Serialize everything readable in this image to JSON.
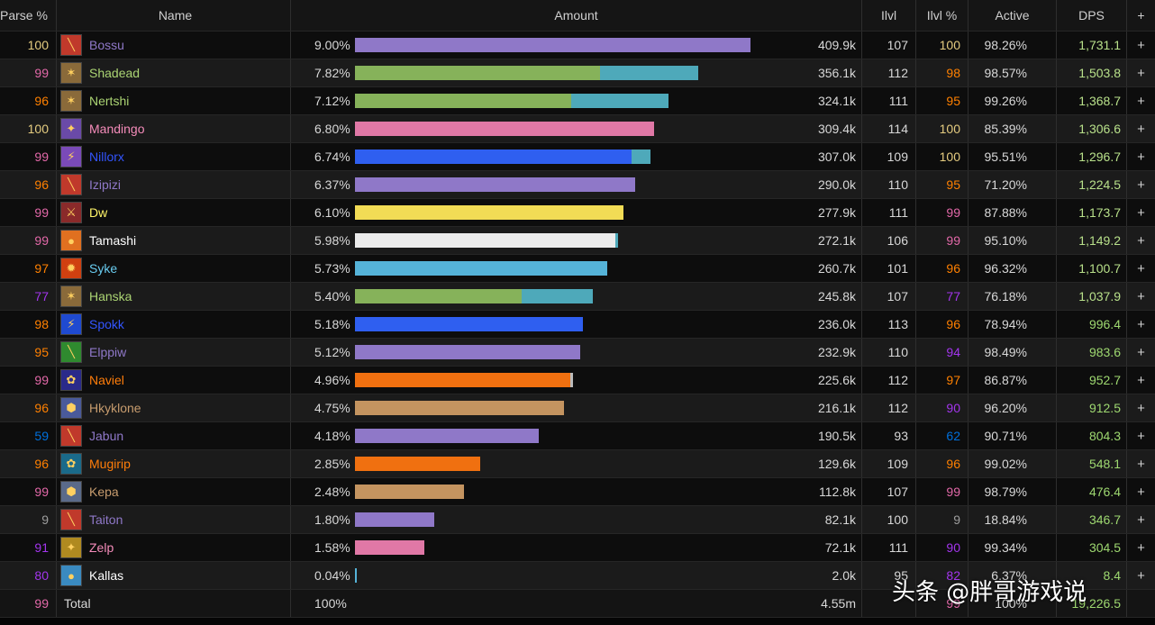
{
  "header": {
    "parse": "Parse %",
    "name": "Name",
    "amount": "Amount",
    "ilvl": "Ilvl",
    "ilvl_pct": "Ilvl %",
    "active": "Active",
    "dps": "DPS",
    "plus": "+"
  },
  "colors": {
    "purple": "#8f78c8",
    "green": "#86b25a",
    "teal": "#4ea9ba",
    "pink": "#e078a6",
    "blue": "#2f5ff0",
    "yellow": "#f2dc55",
    "white": "#ececec",
    "skyblue": "#55b3d8",
    "orange": "#f07010",
    "tan": "#c49460",
    "grey": "#9a9a9a"
  },
  "players": [
    {
      "parse": "100",
      "parse_color": "#e5cc80",
      "name": "Bossu",
      "name_color": "#8f78c8",
      "icon": "warlock-icon",
      "icon_color": "#c0392b",
      "pct": "9.00%",
      "bar": [
        {
          "frac": 0.9,
          "color": "#8f78c8"
        }
      ],
      "amount": "409.9k",
      "ilvl": "107",
      "ilvl_pct": "100",
      "ilvl_color": "#e5cc80",
      "active": "98.26%",
      "dps": "1,731.1",
      "dps_color": "#b8e08a"
    },
    {
      "parse": "99",
      "parse_color": "#e268a8",
      "name": "Shadead",
      "name_color": "#abd473",
      "icon": "hunter-icon",
      "icon_color": "#8a6a3a",
      "pct": "7.82%",
      "bar": [
        {
          "frac": 0.558,
          "color": "#86b25a"
        },
        {
          "frac": 0.224,
          "color": "#4ea9ba"
        }
      ],
      "amount": "356.1k",
      "ilvl": "112",
      "ilvl_pct": "98",
      "ilvl_color": "#ff8000",
      "active": "98.57%",
      "dps": "1,503.8",
      "dps_color": "#b8e08a"
    },
    {
      "parse": "96",
      "parse_color": "#ff8000",
      "name": "Nertshi",
      "name_color": "#abd473",
      "icon": "hunter-icon",
      "icon_color": "#8a6a3a",
      "pct": "7.12%",
      "bar": [
        {
          "frac": 0.491,
          "color": "#86b25a"
        },
        {
          "frac": 0.221,
          "color": "#4ea9ba"
        }
      ],
      "amount": "324.1k",
      "ilvl": "111",
      "ilvl_pct": "95",
      "ilvl_color": "#ff8000",
      "active": "99.26%",
      "dps": "1,368.7",
      "dps_color": "#b8e08a"
    },
    {
      "parse": "100",
      "parse_color": "#e5cc80",
      "name": "Mandingo",
      "name_color": "#f58cba",
      "icon": "paladin-icon",
      "icon_color": "#6a4aa8",
      "pct": "6.80%",
      "bar": [
        {
          "frac": 0.68,
          "color": "#e078a6"
        }
      ],
      "amount": "309.4k",
      "ilvl": "114",
      "ilvl_pct": "100",
      "ilvl_color": "#e5cc80",
      "active": "85.39%",
      "dps": "1,306.6",
      "dps_color": "#b8e08a"
    },
    {
      "parse": "99",
      "parse_color": "#e268a8",
      "name": "Nillorx",
      "name_color": "#3355ff",
      "icon": "shaman-icon",
      "icon_color": "#7a4ab8",
      "pct": "6.74%",
      "bar": [
        {
          "frac": 0.63,
          "color": "#2f5ff0"
        },
        {
          "frac": 0.044,
          "color": "#4ea9ba"
        }
      ],
      "amount": "307.0k",
      "ilvl": "109",
      "ilvl_pct": "100",
      "ilvl_color": "#e5cc80",
      "active": "95.51%",
      "dps": "1,296.7",
      "dps_color": "#b8e08a"
    },
    {
      "parse": "96",
      "parse_color": "#ff8000",
      "name": "Izipizi",
      "name_color": "#8f78c8",
      "icon": "warlock-icon",
      "icon_color": "#c0392b",
      "pct": "6.37%",
      "bar": [
        {
          "frac": 0.637,
          "color": "#8f78c8"
        }
      ],
      "amount": "290.0k",
      "ilvl": "110",
      "ilvl_pct": "95",
      "ilvl_color": "#ff8000",
      "active": "71.20%",
      "dps": "1,224.5",
      "dps_color": "#b8e08a"
    },
    {
      "parse": "99",
      "parse_color": "#e268a8",
      "name": "Dw",
      "name_color": "#fff569",
      "icon": "rogue-icon",
      "icon_color": "#8a2a2a",
      "pct": "6.10%",
      "bar": [
        {
          "frac": 0.61,
          "color": "#f2dc55"
        }
      ],
      "amount": "277.9k",
      "ilvl": "111",
      "ilvl_pct": "99",
      "ilvl_color": "#e268a8",
      "active": "87.88%",
      "dps": "1,173.7",
      "dps_color": "#b8e08a"
    },
    {
      "parse": "99",
      "parse_color": "#e268a8",
      "name": "Tamashi",
      "name_color": "#ffffff",
      "icon": "priest-icon",
      "icon_color": "#e07020",
      "pct": "5.98%",
      "bar": [
        {
          "frac": 0.592,
          "color": "#ececec"
        },
        {
          "frac": 0.006,
          "color": "#4ea9ba"
        }
      ],
      "amount": "272.1k",
      "ilvl": "106",
      "ilvl_pct": "99",
      "ilvl_color": "#e268a8",
      "active": "95.10%",
      "dps": "1,149.2",
      "dps_color": "#b8e08a"
    },
    {
      "parse": "97",
      "parse_color": "#ff8000",
      "name": "Syke",
      "name_color": "#69ccf0",
      "icon": "mage-icon",
      "icon_color": "#d04010",
      "pct": "5.73%",
      "bar": [
        {
          "frac": 0.573,
          "color": "#55b3d8"
        }
      ],
      "amount": "260.7k",
      "ilvl": "101",
      "ilvl_pct": "96",
      "ilvl_color": "#ff8000",
      "active": "96.32%",
      "dps": "1,100.7",
      "dps_color": "#b8e08a"
    },
    {
      "parse": "77",
      "parse_color": "#a335ee",
      "name": "Hanska",
      "name_color": "#abd473",
      "icon": "hunter-icon",
      "icon_color": "#8a6a3a",
      "pct": "5.40%",
      "bar": [
        {
          "frac": 0.379,
          "color": "#86b25a"
        },
        {
          "frac": 0.161,
          "color": "#4ea9ba"
        }
      ],
      "amount": "245.8k",
      "ilvl": "107",
      "ilvl_pct": "77",
      "ilvl_color": "#a335ee",
      "active": "76.18%",
      "dps": "1,037.9",
      "dps_color": "#b8e08a"
    },
    {
      "parse": "98",
      "parse_color": "#ff8000",
      "name": "Spokk",
      "name_color": "#3355ff",
      "icon": "shaman-icon",
      "icon_color": "#1f4ad0",
      "pct": "5.18%",
      "bar": [
        {
          "frac": 0.518,
          "color": "#2f5ff0"
        }
      ],
      "amount": "236.0k",
      "ilvl": "113",
      "ilvl_pct": "96",
      "ilvl_color": "#ff8000",
      "active": "78.94%",
      "dps": "996.4",
      "dps_color": "#9ed870"
    },
    {
      "parse": "95",
      "parse_color": "#ff8000",
      "name": "Elppiw",
      "name_color": "#8f78c8",
      "icon": "warlock-icon",
      "icon_color": "#2f8a2f",
      "pct": "5.12%",
      "bar": [
        {
          "frac": 0.512,
          "color": "#8f78c8"
        }
      ],
      "amount": "232.9k",
      "ilvl": "110",
      "ilvl_pct": "94",
      "ilvl_color": "#a335ee",
      "active": "98.49%",
      "dps": "983.6",
      "dps_color": "#9ed870"
    },
    {
      "parse": "99",
      "parse_color": "#e268a8",
      "name": "Naviel",
      "name_color": "#ff7d0a",
      "icon": "druid-icon",
      "icon_color": "#2a2a8a",
      "pct": "4.96%",
      "bar": [
        {
          "frac": 0.49,
          "color": "#f07010"
        },
        {
          "frac": 0.006,
          "color": "#bbbbbb"
        }
      ],
      "amount": "225.6k",
      "ilvl": "112",
      "ilvl_pct": "97",
      "ilvl_color": "#ff8000",
      "active": "86.87%",
      "dps": "952.7",
      "dps_color": "#9ed870"
    },
    {
      "parse": "96",
      "parse_color": "#ff8000",
      "name": "Hkyklone",
      "name_color": "#c79c6e",
      "icon": "warrior-icon",
      "icon_color": "#4a5a9a",
      "pct": "4.75%",
      "bar": [
        {
          "frac": 0.475,
          "color": "#c49460"
        }
      ],
      "amount": "216.1k",
      "ilvl": "112",
      "ilvl_pct": "90",
      "ilvl_color": "#a335ee",
      "active": "96.20%",
      "dps": "912.5",
      "dps_color": "#9ed870"
    },
    {
      "parse": "59",
      "parse_color": "#0070dd",
      "name": "Jabun",
      "name_color": "#8f78c8",
      "icon": "warlock-icon",
      "icon_color": "#c0392b",
      "pct": "4.18%",
      "bar": [
        {
          "frac": 0.418,
          "color": "#8f78c8"
        }
      ],
      "amount": "190.5k",
      "ilvl": "93",
      "ilvl_pct": "62",
      "ilvl_color": "#0070dd",
      "active": "90.71%",
      "dps": "804.3",
      "dps_color": "#9ed870"
    },
    {
      "parse": "96",
      "parse_color": "#ff8000",
      "name": "Mugirip",
      "name_color": "#ff7d0a",
      "icon": "druid-icon",
      "icon_color": "#1a6a8a",
      "pct": "2.85%",
      "bar": [
        {
          "frac": 0.285,
          "color": "#f07010"
        }
      ],
      "amount": "129.6k",
      "ilvl": "109",
      "ilvl_pct": "96",
      "ilvl_color": "#ff8000",
      "active": "99.02%",
      "dps": "548.1",
      "dps_color": "#9ed870"
    },
    {
      "parse": "99",
      "parse_color": "#e268a8",
      "name": "Kepa",
      "name_color": "#c79c6e",
      "icon": "warrior-icon",
      "icon_color": "#5a6a8a",
      "pct": "2.48%",
      "bar": [
        {
          "frac": 0.248,
          "color": "#c49460"
        }
      ],
      "amount": "112.8k",
      "ilvl": "107",
      "ilvl_pct": "99",
      "ilvl_color": "#e268a8",
      "active": "98.79%",
      "dps": "476.4",
      "dps_color": "#9ed870"
    },
    {
      "parse": "9",
      "parse_color": "#9d9d9d",
      "name": "Taiton",
      "name_color": "#8f78c8",
      "icon": "warlock-icon",
      "icon_color": "#c0392b",
      "pct": "1.80%",
      "bar": [
        {
          "frac": 0.18,
          "color": "#8f78c8"
        }
      ],
      "amount": "82.1k",
      "ilvl": "100",
      "ilvl_pct": "9",
      "ilvl_color": "#9d9d9d",
      "active": "18.84%",
      "dps": "346.7",
      "dps_color": "#9ed870"
    },
    {
      "parse": "91",
      "parse_color": "#a335ee",
      "name": "Zelp",
      "name_color": "#f58cba",
      "icon": "paladin-icon",
      "icon_color": "#b08a20",
      "pct": "1.58%",
      "bar": [
        {
          "frac": 0.158,
          "color": "#e078a6"
        }
      ],
      "amount": "72.1k",
      "ilvl": "111",
      "ilvl_pct": "90",
      "ilvl_color": "#a335ee",
      "active": "99.34%",
      "dps": "304.5",
      "dps_color": "#9ed870"
    },
    {
      "parse": "80",
      "parse_color": "#a335ee",
      "name": "Kallas",
      "name_color": "#ffffff",
      "icon": "priest-icon",
      "icon_color": "#3a8ac0",
      "pct": "0.04%",
      "bar": [
        {
          "frac": 0.004,
          "color": "#55b3d8"
        }
      ],
      "amount": "2.0k",
      "ilvl": "95",
      "ilvl_pct": "82",
      "ilvl_color": "#a335ee",
      "active": "6.37%",
      "dps": "8.4",
      "dps_color": "#9ed870"
    }
  ],
  "total": {
    "parse": "99",
    "parse_color": "#e268a8",
    "name": "Total",
    "pct": "100%",
    "amount": "4.55m",
    "ilvl": "",
    "ilvl_pct": "99",
    "ilvl_color": "#e268a8",
    "active": "100%",
    "dps": "19,226.5",
    "dps_color": "#9ed870"
  },
  "watermark": "头条 @胖哥游戏说"
}
